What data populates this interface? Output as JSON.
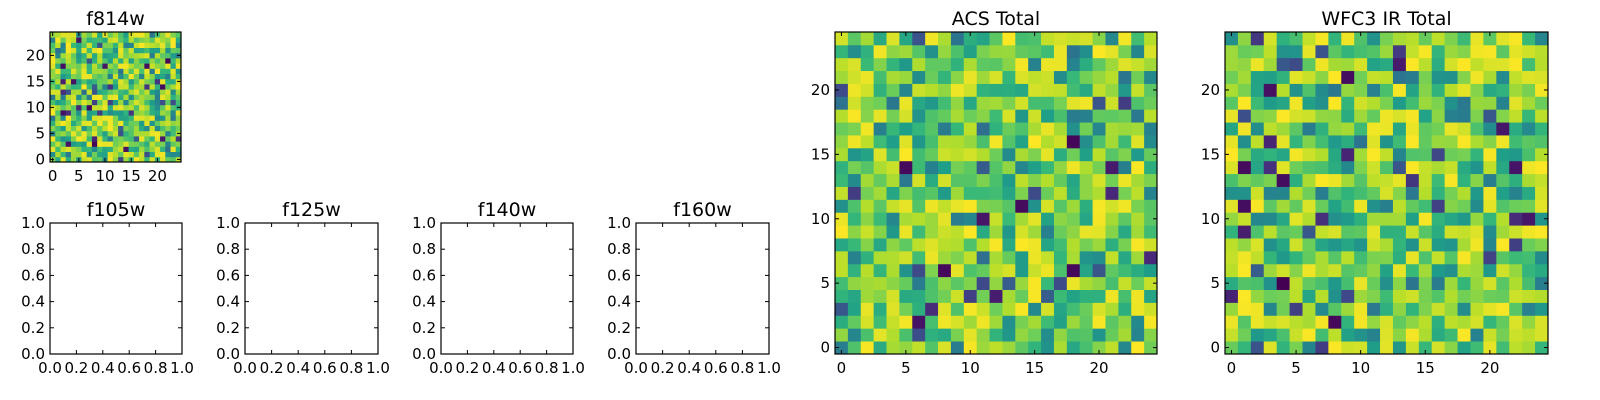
{
  "colormap": "viridis",
  "chart_data": [
    {
      "id": "f814w",
      "type": "heatmap",
      "title": "f814w",
      "x_ticks": [
        "0",
        "5",
        "10",
        "15",
        "20"
      ],
      "y_ticks": [
        "0",
        "5",
        "10",
        "15",
        "20"
      ],
      "xlim": [
        -0.5,
        24.5
      ],
      "ylim": [
        -0.5,
        24.5
      ],
      "grid_size": 25,
      "value_range": [
        0,
        1
      ],
      "seed": 814
    },
    {
      "id": "f105w",
      "type": "empty",
      "title": "f105w",
      "x_ticks": [
        "0.0",
        "0.2",
        "0.4",
        "0.6",
        "0.8",
        "1.0"
      ],
      "y_ticks": [
        "0.0",
        "0.2",
        "0.4",
        "0.6",
        "0.8",
        "1.0"
      ],
      "xlim": [
        0,
        1
      ],
      "ylim": [
        0,
        1
      ]
    },
    {
      "id": "f125w",
      "type": "empty",
      "title": "f125w",
      "x_ticks": [
        "0.0",
        "0.2",
        "0.4",
        "0.6",
        "0.8",
        "1.0"
      ],
      "y_ticks": [
        "0.0",
        "0.2",
        "0.4",
        "0.6",
        "0.8",
        "1.0"
      ],
      "xlim": [
        0,
        1
      ],
      "ylim": [
        0,
        1
      ]
    },
    {
      "id": "f140w",
      "type": "empty",
      "title": "f140w",
      "x_ticks": [
        "0.0",
        "0.2",
        "0.4",
        "0.6",
        "0.8",
        "1.0"
      ],
      "y_ticks": [
        "0.0",
        "0.2",
        "0.4",
        "0.6",
        "0.8",
        "1.0"
      ],
      "xlim": [
        0,
        1
      ],
      "ylim": [
        0,
        1
      ]
    },
    {
      "id": "f160w",
      "type": "empty",
      "title": "f160w",
      "x_ticks": [
        "0.0",
        "0.2",
        "0.4",
        "0.6",
        "0.8",
        "1.0"
      ],
      "y_ticks": [
        "0.0",
        "0.2",
        "0.4",
        "0.6",
        "0.8",
        "1.0"
      ],
      "xlim": [
        0,
        1
      ],
      "ylim": [
        0,
        1
      ]
    },
    {
      "id": "acs-total",
      "type": "heatmap",
      "title": "ACS Total",
      "x_ticks": [
        "0",
        "5",
        "10",
        "15",
        "20"
      ],
      "y_ticks": [
        "0",
        "5",
        "10",
        "15",
        "20"
      ],
      "xlim": [
        -0.5,
        24.5
      ],
      "ylim": [
        -0.5,
        24.5
      ],
      "grid_size": 25,
      "value_range": [
        0,
        1
      ],
      "seed": 2025
    },
    {
      "id": "wfc3-ir-total",
      "type": "heatmap",
      "title": "WFC3 IR Total",
      "x_ticks": [
        "0",
        "5",
        "10",
        "15",
        "20"
      ],
      "y_ticks": [
        "0",
        "5",
        "10",
        "15",
        "20"
      ],
      "xlim": [
        -0.5,
        24.5
      ],
      "ylim": [
        -0.5,
        24.5
      ],
      "grid_size": 25,
      "value_range": [
        0,
        1
      ],
      "seed": 3110
    }
  ]
}
